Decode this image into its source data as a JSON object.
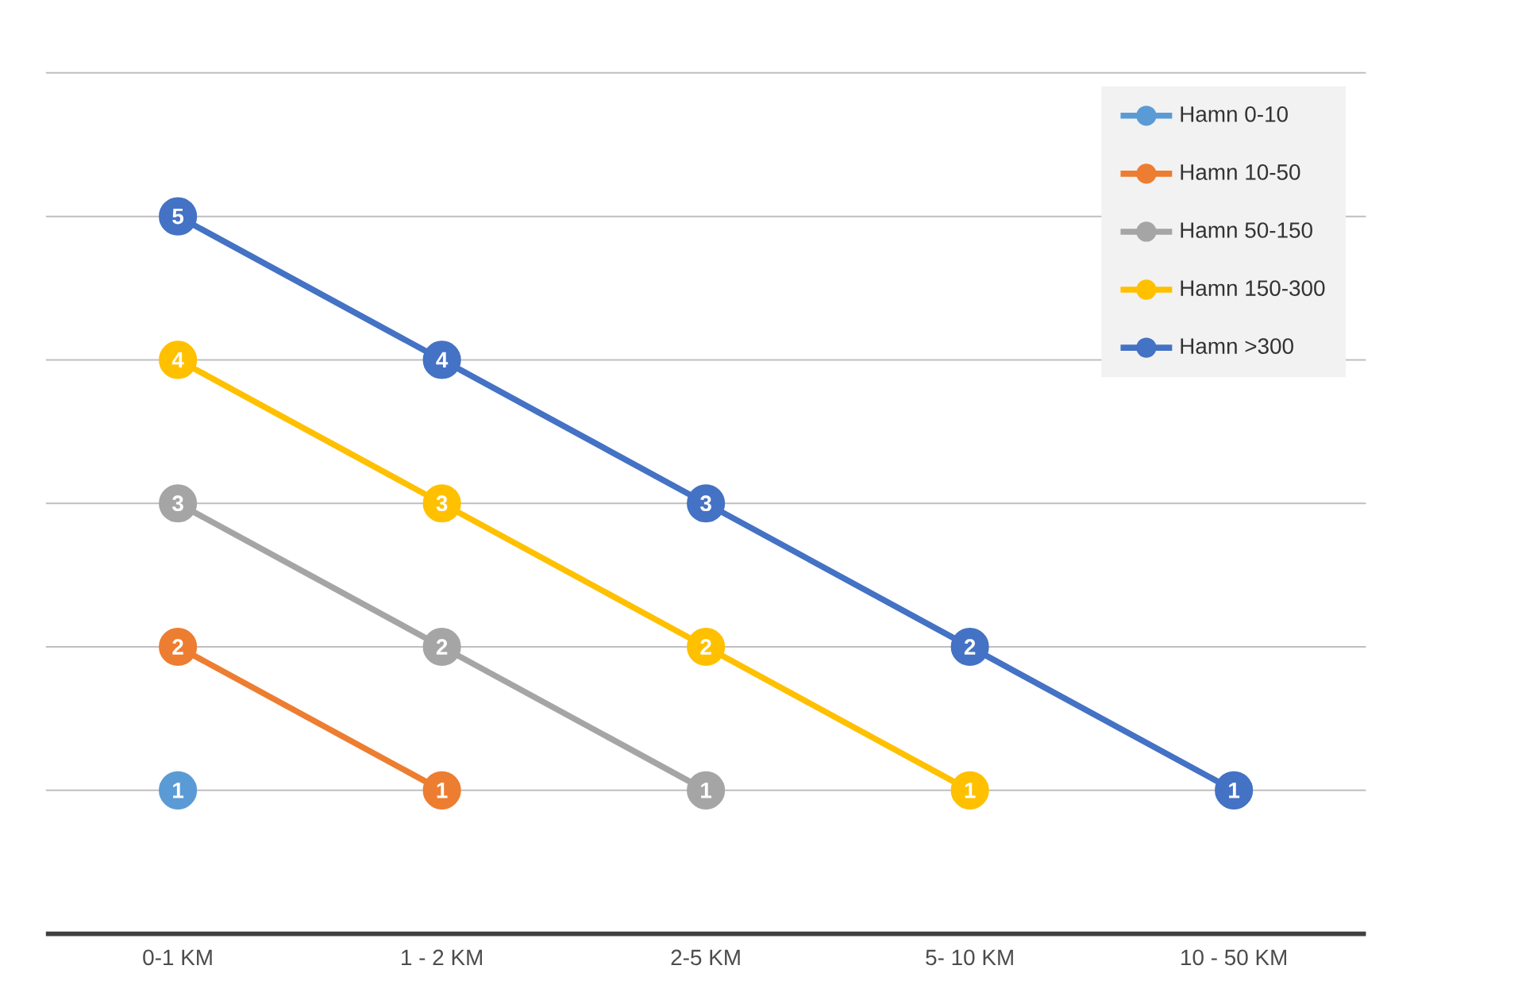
{
  "chart_data": {
    "type": "line",
    "categories": [
      "0-1 KM",
      "1 - 2 KM",
      "2-5 KM",
      "5- 10 KM",
      "10 - 50 KM"
    ],
    "series": [
      {
        "name": "Hamn 0-10",
        "color": "#5b9bd5",
        "values": [
          1,
          null,
          null,
          null,
          null
        ]
      },
      {
        "name": "Hamn 10-50",
        "color": "#ed7d31",
        "values": [
          2,
          1,
          null,
          null,
          null
        ]
      },
      {
        "name": "Hamn 50-150",
        "color": "#a5a5a5",
        "values": [
          3,
          2,
          1,
          null,
          null
        ]
      },
      {
        "name": "Hamn 150-300",
        "color": "#ffc000",
        "values": [
          4,
          3,
          2,
          1,
          null
        ]
      },
      {
        "name": "Hamn >300",
        "color": "#4472c4",
        "values": [
          5,
          4,
          3,
          2,
          1
        ]
      }
    ],
    "tick_labels": "x",
    "grid": "y",
    "legend": "top right",
    "marker": "circle",
    "line_style": "solid",
    "data_labels": true
  }
}
